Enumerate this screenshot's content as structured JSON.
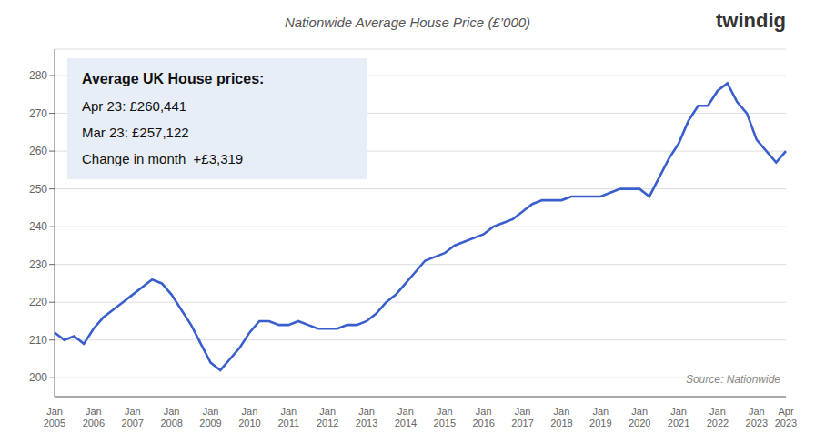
{
  "chart_data": {
    "type": "line",
    "title": "Nationwide Average House Price (£’000)",
    "categories": [
      "Jan\n2005",
      null,
      null,
      null,
      "Jan\n2006",
      null,
      null,
      null,
      "Jan\n2007",
      null,
      null,
      null,
      "Jan\n2008",
      null,
      null,
      null,
      "Jan\n2009",
      null,
      null,
      null,
      "Jan\n2010",
      null,
      null,
      null,
      "Jan\n2011",
      null,
      null,
      null,
      "Jan\n2012",
      null,
      null,
      null,
      "Jan\n2013",
      null,
      null,
      null,
      "Jan\n2014",
      null,
      null,
      null,
      "Jan\n2015",
      null,
      null,
      null,
      "Jan\n2016",
      null,
      null,
      null,
      "Jan\n2017",
      null,
      null,
      null,
      "Jan\n2018",
      null,
      null,
      null,
      "Jan\n2019",
      null,
      null,
      null,
      "Jan\n2020",
      null,
      null,
      null,
      "Jan\n2021",
      null,
      null,
      null,
      "Jan\n2022",
      null,
      null,
      null,
      "Jan\n2023",
      null,
      null,
      "Apr\n2023"
    ],
    "values": [
      212,
      210,
      211,
      209,
      213,
      216,
      218,
      220,
      222,
      224,
      226,
      225,
      222,
      218,
      214,
      209,
      204,
      202,
      205,
      208,
      212,
      215,
      215,
      214,
      214,
      215,
      214,
      213,
      213,
      213,
      214,
      214,
      215,
      217,
      220,
      222,
      225,
      228,
      231,
      232,
      233,
      235,
      236,
      237,
      238,
      240,
      241,
      242,
      244,
      246,
      247,
      247,
      247,
      248,
      248,
      248,
      248,
      249,
      250,
      250,
      250,
      248,
      253,
      258,
      262,
      268,
      272,
      272,
      276,
      278,
      273,
      270,
      263,
      260,
      257,
      260
    ],
    "color": "#3a5fcd",
    "ylim": [
      195,
      287
    ],
    "yticks": [
      200,
      210,
      220,
      230,
      240,
      250,
      260,
      270,
      280
    ],
    "grid": true,
    "annotations": [
      [
        "Average UK House prices:",
        "Apr 23: £260,441",
        "Mar 23: £257,122",
        "Change in month  +£3,319"
      ],
      [
        "Source: Nationwide"
      ],
      [
        "twindig"
      ]
    ]
  }
}
